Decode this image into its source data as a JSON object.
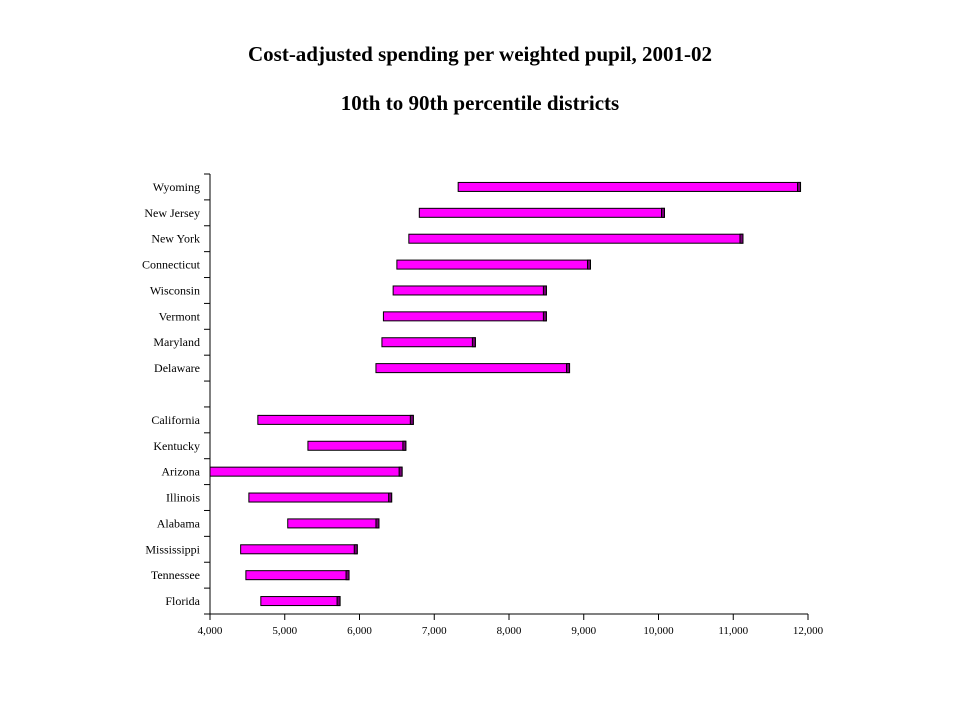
{
  "chart_data": {
    "type": "bar",
    "orientation": "horizontal",
    "title": "Cost-adjusted spending per weighted pupil, 2001-02",
    "subtitle": "10th to 90th percentile districts",
    "xlabel": "",
    "ylabel": "",
    "xlim": [
      4000,
      12000
    ],
    "x_ticks": [
      4000,
      5000,
      6000,
      7000,
      8000,
      9000,
      10000,
      11000,
      12000
    ],
    "x_tick_labels": [
      "4,000",
      "5,000",
      "6,000",
      "7,000",
      "8,000",
      "9,000",
      "10,000",
      "11,000",
      "12,000"
    ],
    "grid": false,
    "legend": "none",
    "bar_color": "#ff00ff",
    "categories": [
      "Wyoming",
      "New Jersey",
      "New York",
      "Connecticut",
      "Wisconsin",
      "Vermont",
      "Maryland",
      "Delaware",
      "",
      "California",
      "Kentucky",
      "Arizona",
      "Illinois",
      "Alabama",
      "Mississippi",
      "Tennessee",
      "Florida"
    ],
    "low": [
      7320,
      6800,
      6660,
      6500,
      6450,
      6320,
      6300,
      6220,
      null,
      4640,
      5310,
      4000,
      4520,
      5040,
      4410,
      4480,
      4680
    ],
    "high": [
      11900,
      10080,
      11130,
      9090,
      8500,
      8500,
      7550,
      8810,
      null,
      6720,
      6620,
      6570,
      6430,
      6260,
      5970,
      5860,
      5740
    ]
  }
}
